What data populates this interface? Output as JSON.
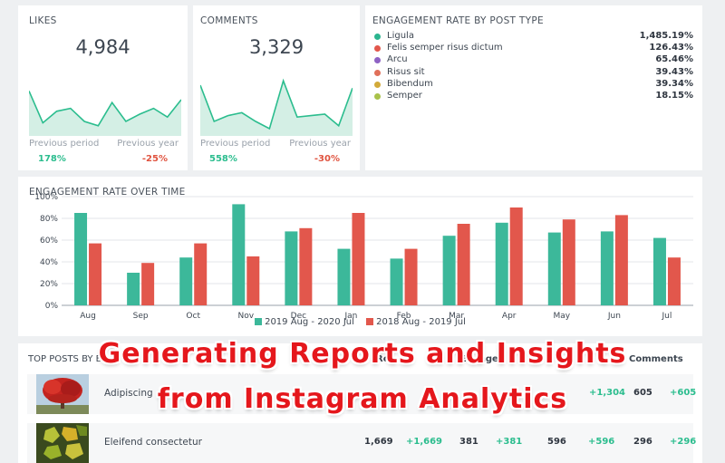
{
  "likes": {
    "title": "LIKES",
    "value": "4,984",
    "previous_period_label": "Previous period",
    "previous_year_label": "Previous year",
    "previous_period_pct": "178%",
    "previous_year_pct": "-25%",
    "sparkline": [
      62,
      18,
      34,
      38,
      20,
      14,
      46,
      20,
      30,
      38,
      26,
      50
    ]
  },
  "comments": {
    "title": "COMMENTS",
    "value": "3,329",
    "previous_period_label": "Previous period",
    "previous_year_label": "Previous year",
    "previous_period_pct": "558%",
    "previous_year_pct": "-30%",
    "sparkline": [
      70,
      20,
      28,
      32,
      20,
      10,
      76,
      26,
      28,
      30,
      14,
      66
    ]
  },
  "engagement_by_type": {
    "title": "ENGAGEMENT RATE BY POST TYPE",
    "items": [
      {
        "name": "Ligula",
        "value": "1,485.19%",
        "color": "#2bb58f"
      },
      {
        "name": "Felis semper risus dictum",
        "value": "126.43%",
        "color": "#e2574c"
      },
      {
        "name": "Arcu",
        "value": "65.46%",
        "color": "#8e62c4"
      },
      {
        "name": "Risus sit",
        "value": "39.43%",
        "color": "#e0705a"
      },
      {
        "name": "Bibendum",
        "value": "39.34%",
        "color": "#d2aa3a"
      },
      {
        "name": "Semper",
        "value": "18.15%",
        "color": "#a9c24a"
      }
    ]
  },
  "engagement_over_time": {
    "title": "ENGAGEMENT RATE OVER TIME",
    "legend": [
      "2019 Aug - 2020 Jul",
      "2018 Aug - 2019 Jul"
    ]
  },
  "chart_data": {
    "type": "bar",
    "categories": [
      "Aug",
      "Sep",
      "Oct",
      "Nov",
      "Dec",
      "Jan",
      "Feb",
      "Mar",
      "Apr",
      "May",
      "Jun",
      "Jul"
    ],
    "series": [
      {
        "name": "2019 Aug - 2020 Jul",
        "color": "#3cb89a",
        "values": [
          85,
          30,
          44,
          93,
          68,
          52,
          43,
          64,
          76,
          67,
          68,
          62
        ]
      },
      {
        "name": "2018 Aug - 2019 Jul",
        "color": "#e2574c",
        "values": [
          57,
          39,
          57,
          45,
          71,
          85,
          52,
          75,
          90,
          79,
          83,
          44
        ]
      }
    ],
    "yticks": [
      "0%",
      "20%",
      "40%",
      "60%",
      "80%",
      "100%"
    ],
    "ylim": [
      0,
      100
    ],
    "grid": true,
    "legend_position": "bottom"
  },
  "top_posts": {
    "title": "TOP POSTS BY EN",
    "col_reach": "Rea",
    "col_engagement": "Engage",
    "col_comments": "Comments",
    "rows": [
      {
        "name": "Adipiscing",
        "c1": "",
        "c1g": "",
        "c2": "",
        "c2g": "",
        "c3": "",
        "c3g": "+1,304",
        "c4": "605",
        "c4g": "+605"
      },
      {
        "name": "Eleifend consectetur",
        "c1": "1,669",
        "c1g": "+1,669",
        "c2": "381",
        "c2g": "+381",
        "c3": "596",
        "c3g": "+596",
        "c4": "296",
        "c4g": "+296"
      }
    ]
  },
  "overlay": {
    "line1": "Generating Reports and Insights",
    "line2": "from Instagram Analytics"
  }
}
